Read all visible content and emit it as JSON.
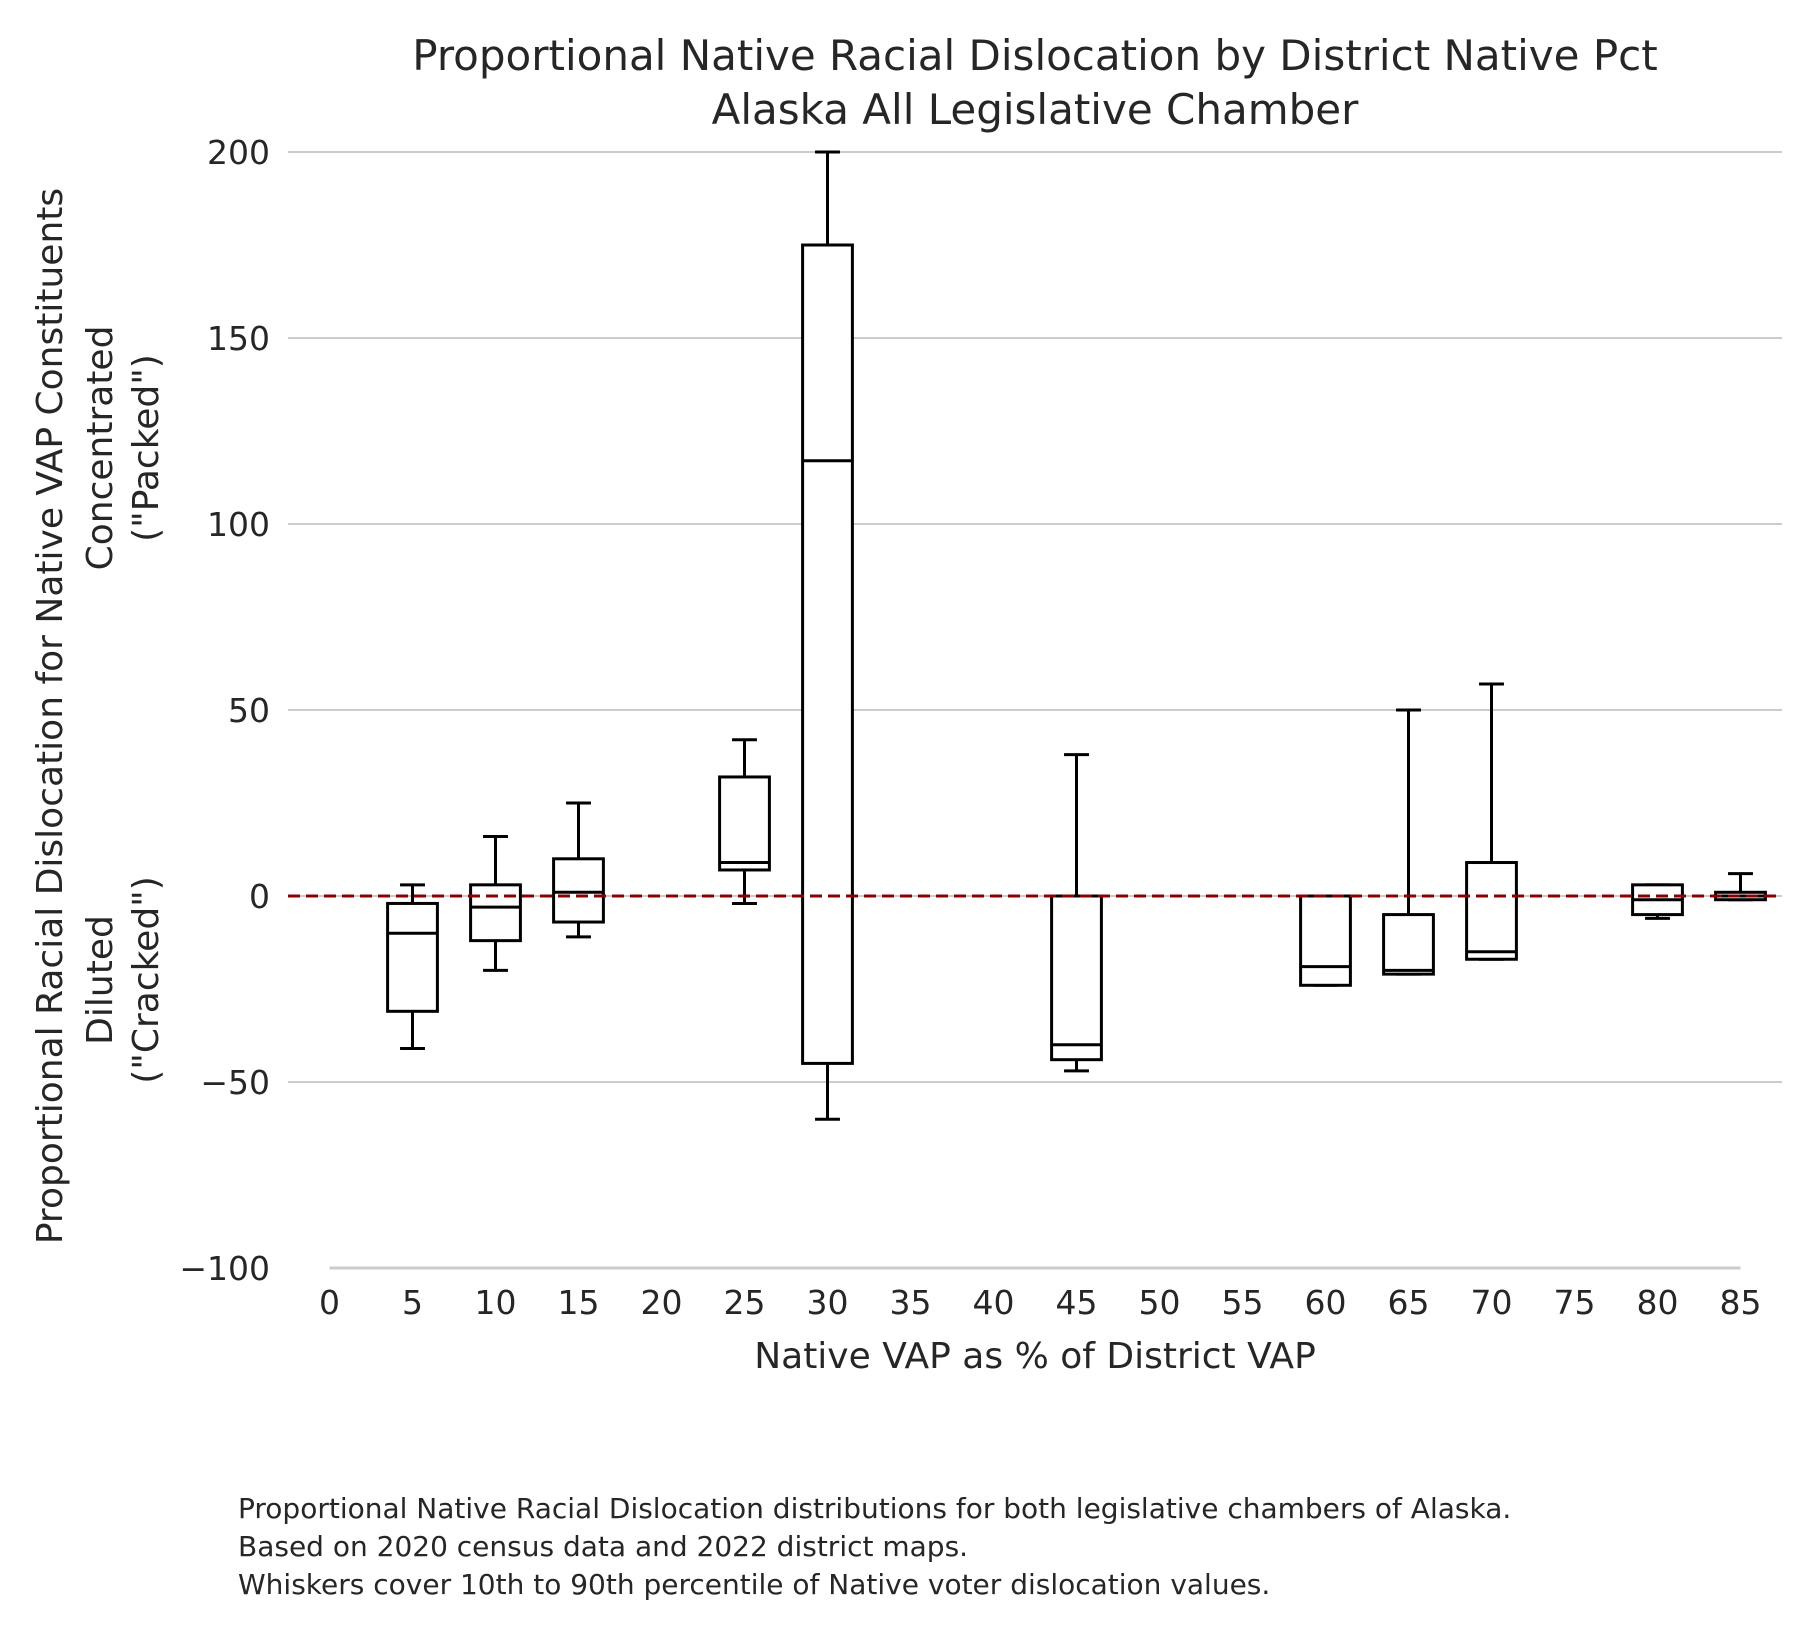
{
  "chart_data": {
    "type": "boxplot",
    "title": [
      "Proportional Native Racial Dislocation by District Native Pct",
      "Alaska All Legislative Chamber"
    ],
    "xlabel": "Native VAP as % of District VAP",
    "ylabel": [
      "Proportional Racial Dislocation for Native VAP Constituents",
      "Diluted",
      "(\"Cracked\")",
      "Concentrated",
      "(\"Packed\")"
    ],
    "x_ticks": [
      "0",
      "5",
      "10",
      "15",
      "20",
      "25",
      "30",
      "35",
      "40",
      "45",
      "50",
      "55",
      "60",
      "65",
      "70",
      "75",
      "80",
      "85"
    ],
    "y_ticks": [
      "200",
      "150",
      "100",
      "50",
      "0",
      "-50",
      "-100"
    ],
    "y_tick_values": [
      200,
      150,
      100,
      50,
      0,
      -50,
      -100
    ],
    "ylim": [
      -100,
      200
    ],
    "xlim": [
      -2.5,
      87.5
    ],
    "grid": "horizontal",
    "reference_line": {
      "y": 0,
      "style": "dashed",
      "color": "#8b0000"
    },
    "box_color": "#000000",
    "boxes": [
      {
        "x": 5,
        "whisker_low": -41,
        "q1": -31,
        "median": -10,
        "q3": -2,
        "whisker_high": 3
      },
      {
        "x": 10,
        "whisker_low": -20,
        "q1": -12,
        "median": -3,
        "q3": 3,
        "whisker_high": 16
      },
      {
        "x": 15,
        "whisker_low": -11,
        "q1": -7,
        "median": 1,
        "q3": 10,
        "whisker_high": 25
      },
      {
        "x": 25,
        "whisker_low": -2,
        "q1": 7,
        "median": 9,
        "q3": 32,
        "whisker_high": 42
      },
      {
        "x": 30,
        "whisker_low": -60,
        "q1": -45,
        "median": 117,
        "q3": 175,
        "whisker_high": 200
      },
      {
        "x": 45,
        "whisker_low": -47,
        "q1": -44,
        "median": -40,
        "q3": 0,
        "whisker_high": 38
      },
      {
        "x": 60,
        "whisker_low": -24,
        "q1": -24,
        "median": -19,
        "q3": 0,
        "whisker_high": 0
      },
      {
        "x": 65,
        "whisker_low": -21,
        "q1": -21,
        "median": -20,
        "q3": -5,
        "whisker_high": 50
      },
      {
        "x": 70,
        "whisker_low": -17,
        "q1": -17,
        "median": -15,
        "q3": 9,
        "whisker_high": 57
      },
      {
        "x": 80,
        "whisker_low": -6,
        "q1": -5,
        "median": -1,
        "q3": 3,
        "whisker_high": 3
      },
      {
        "x": 85,
        "whisker_low": -1,
        "q1": -1,
        "median": 0,
        "q3": 1,
        "whisker_high": 6
      }
    ]
  },
  "caption": [
    "Proportional Native Racial Dislocation distributions for both legislative chambers of Alaska.",
    "Based on 2020 census data and 2022 district maps.",
    "Whiskers cover 10th to 90th percentile of Native voter dislocation values."
  ]
}
